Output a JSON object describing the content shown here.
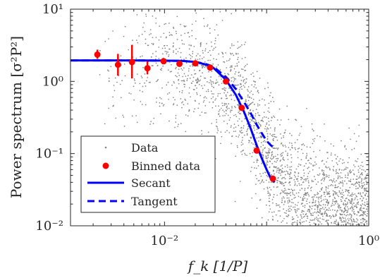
{
  "chart_data": {
    "type": "scatter",
    "x_scale": "log",
    "y_scale": "log",
    "xlim": [
      0.0012,
      1.0
    ],
    "ylim": [
      0.01,
      10
    ],
    "xlabel": "f_k [1/P]",
    "ylabel": "Power spectrum [σ²P²]",
    "x_ticks": [
      {
        "value": 0.01,
        "label": "10⁻²"
      },
      {
        "value": 1,
        "label": "10⁰"
      }
    ],
    "y_ticks": [
      {
        "value": 0.01,
        "label": "10⁻²"
      },
      {
        "value": 0.1,
        "label": "10⁻¹"
      },
      {
        "value": 1,
        "label": "10⁰"
      },
      {
        "value": 10,
        "label": "10¹"
      }
    ],
    "grid": false,
    "legend_position": "bottom-left",
    "series": [
      {
        "name": "Data",
        "kind": "scatter",
        "color": "#808080",
        "description": "dense cloud of individual periodogram points; sparse at low f_k, dense from f_k≈0.01 to 1, spread roughly one decade around the trend",
        "points_sample": [
          [
            0.0022,
            2.1
          ],
          [
            0.003,
            1.4
          ],
          [
            0.0045,
            2.6
          ],
          [
            0.006,
            0.9
          ],
          [
            0.0075,
            1.8
          ],
          [
            0.01,
            2.5
          ],
          [
            0.013,
            0.6
          ],
          [
            0.016,
            3.2
          ],
          [
            0.02,
            1.2
          ],
          [
            0.025,
            4.0
          ],
          [
            0.03,
            0.35
          ],
          [
            0.04,
            2.2
          ],
          [
            0.05,
            5.5
          ],
          [
            0.07,
            1.1
          ],
          [
            0.1,
            0.8
          ],
          [
            0.15,
            0.5
          ],
          [
            0.2,
            0.25
          ],
          [
            0.3,
            0.12
          ],
          [
            0.5,
            0.06
          ],
          [
            0.8,
            0.03
          ]
        ]
      },
      {
        "name": "Binned data",
        "kind": "errorbar",
        "color": "#ff0000",
        "points": [
          {
            "x": 0.0022,
            "y": 2.35,
            "ylo": 2.05,
            "yhi": 2.75
          },
          {
            "x": 0.0035,
            "y": 1.7,
            "ylo": 1.2,
            "yhi": 2.4
          },
          {
            "x": 0.0048,
            "y": 1.85,
            "ylo": 1.1,
            "yhi": 3.2
          },
          {
            "x": 0.0068,
            "y": 1.52,
            "ylo": 1.25,
            "yhi": 1.9
          },
          {
            "x": 0.0098,
            "y": 1.9,
            "ylo": 1.78,
            "yhi": 2.05
          },
          {
            "x": 0.014,
            "y": 1.75,
            "ylo": 1.65,
            "yhi": 1.85
          },
          {
            "x": 0.02,
            "y": 1.78,
            "ylo": 1.7,
            "yhi": 1.86
          },
          {
            "x": 0.028,
            "y": 1.55,
            "ylo": 1.48,
            "yhi": 1.62
          },
          {
            "x": 0.04,
            "y": 1.0,
            "ylo": 0.96,
            "yhi": 1.04
          },
          {
            "x": 0.057,
            "y": 0.43,
            "ylo": 0.41,
            "yhi": 0.45
          },
          {
            "x": 0.08,
            "y": 0.11,
            "ylo": 0.105,
            "yhi": 0.115
          },
          {
            "x": 0.115,
            "y": 0.045,
            "ylo": 0.043,
            "yhi": 0.047
          }
        ]
      },
      {
        "name": "Secant",
        "kind": "line",
        "style": "solid",
        "color": "#0000ff",
        "points": [
          [
            0.0012,
            1.95
          ],
          [
            0.005,
            1.95
          ],
          [
            0.01,
            1.94
          ],
          [
            0.015,
            1.92
          ],
          [
            0.02,
            1.86
          ],
          [
            0.025,
            1.72
          ],
          [
            0.03,
            1.55
          ],
          [
            0.04,
            1.05
          ],
          [
            0.05,
            0.65
          ],
          [
            0.06,
            0.38
          ],
          [
            0.07,
            0.22
          ],
          [
            0.08,
            0.13
          ],
          [
            0.09,
            0.085
          ],
          [
            0.1,
            0.06
          ],
          [
            0.11,
            0.045
          ],
          [
            0.12,
            0.04
          ]
        ]
      },
      {
        "name": "Tangent",
        "kind": "line",
        "style": "dashed",
        "color": "#0000ff",
        "points": [
          [
            0.0012,
            1.95
          ],
          [
            0.005,
            1.95
          ],
          [
            0.01,
            1.94
          ],
          [
            0.015,
            1.92
          ],
          [
            0.02,
            1.86
          ],
          [
            0.025,
            1.75
          ],
          [
            0.03,
            1.6
          ],
          [
            0.04,
            1.15
          ],
          [
            0.05,
            0.78
          ],
          [
            0.06,
            0.52
          ],
          [
            0.07,
            0.36
          ],
          [
            0.08,
            0.25
          ],
          [
            0.09,
            0.19
          ],
          [
            0.1,
            0.15
          ],
          [
            0.11,
            0.13
          ],
          [
            0.12,
            0.12
          ]
        ]
      }
    ]
  }
}
